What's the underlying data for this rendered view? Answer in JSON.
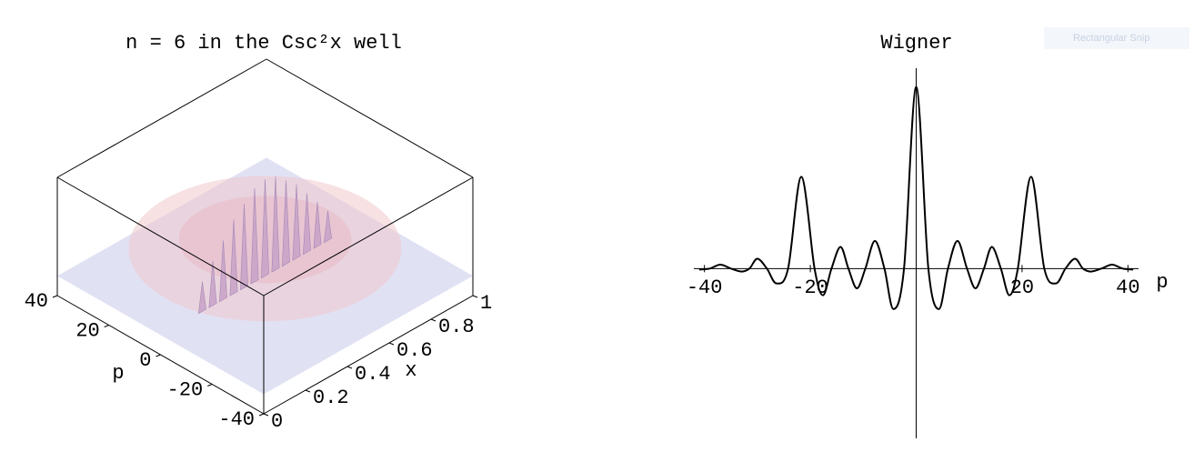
{
  "chart_data": [
    {
      "type": "surface3d",
      "title": "n = 6 in the Csc²x well",
      "xlabel": "x",
      "ylabel": "p",
      "xlim": [
        0,
        1
      ],
      "xticks": [
        0,
        0.2,
        0.4,
        0.6,
        0.8,
        1
      ],
      "ylim": [
        -40,
        40
      ],
      "yticks": [
        -40,
        -20,
        0,
        20,
        40
      ],
      "zlim": [
        -0.2,
        1
      ],
      "series": [
        {
          "color": "#c9a3c8",
          "x": [
            0.2,
            0.25,
            0.3,
            0.35,
            0.4,
            0.45,
            0.5,
            0.55,
            0.6,
            0.65,
            0.7,
            0.75,
            0.8
          ],
          "y": [
            0,
            0,
            0,
            0,
            0,
            0,
            0,
            0,
            0,
            0,
            0,
            0,
            0
          ],
          "values": [
            0.3,
            0.45,
            0.6,
            0.75,
            0.85,
            0.95,
            0.98,
            0.95,
            0.85,
            0.75,
            0.6,
            0.45,
            0.3
          ]
        }
      ]
    },
    {
      "type": "line",
      "title": "Wigner",
      "xlabel": "p",
      "xlim": [
        -42,
        42
      ],
      "xticks": [
        -40,
        -20,
        20,
        40
      ],
      "ylim": [
        -1.72,
        2.03
      ],
      "series": [
        {
          "color": "#000000",
          "x": [
            -41,
            -39,
            -37,
            -35,
            -33,
            -31.5,
            -30,
            -28.2,
            -26.4,
            -24.2,
            -21.7,
            -19.2,
            -17.6,
            -16,
            -14.3,
            -12.8,
            -11.2,
            -9.6,
            -7.8,
            -6,
            -4.3,
            -2.3,
            0,
            2.3,
            4.3,
            6,
            7.8,
            9.6,
            11.2,
            12.8,
            14.3,
            16,
            17.6,
            19.2,
            21.7,
            24.2,
            26.4,
            28.2,
            30,
            31.5,
            33,
            35,
            37,
            39,
            41
          ],
          "values": [
            -0.01,
            0,
            0.04,
            0,
            -0.03,
            0,
            0.1,
            0,
            -0.15,
            0,
            0.93,
            0,
            -0.27,
            0,
            0.22,
            0,
            -0.2,
            0,
            0.28,
            0,
            -0.41,
            0,
            1.84,
            0,
            -0.41,
            0,
            0.28,
            0,
            -0.2,
            0,
            0.22,
            0,
            -0.27,
            0,
            0.93,
            0,
            -0.15,
            0,
            0.1,
            0,
            -0.03,
            0,
            0.04,
            0,
            -0.01
          ]
        }
      ]
    }
  ],
  "overlay": {
    "label": "Rectangular Snip"
  }
}
